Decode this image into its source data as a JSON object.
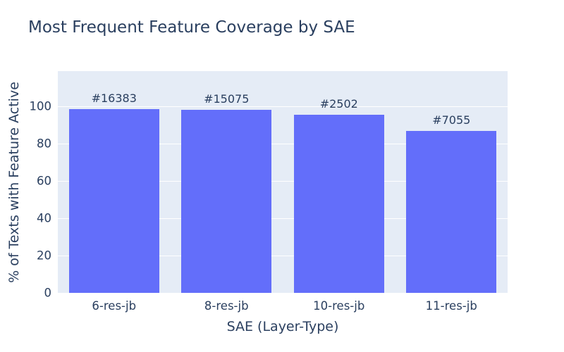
{
  "chart_data": {
    "type": "bar",
    "title": "Most Frequent Feature Coverage by SAE",
    "xlabel": "SAE (Layer-Type)",
    "ylabel": "% of Texts with Feature Active",
    "categories": [
      "6-res-jb",
      "8-res-jb",
      "10-res-jb",
      "11-res-jb"
    ],
    "values": [
      98.6,
      98.4,
      95.5,
      87
    ],
    "bar_labels": [
      "#16383",
      "#15075",
      "#2502",
      "#7055"
    ],
    "yticks": [
      0,
      20,
      40,
      60,
      80,
      100
    ],
    "ylim": [
      0,
      119
    ],
    "grid": true,
    "legend": false,
    "bargap": 0.2,
    "colors": {
      "bar": "#636efa",
      "plot_background": "#e5ecf6",
      "text": "#2a3f5f",
      "gridline": "#ffffff"
    }
  }
}
